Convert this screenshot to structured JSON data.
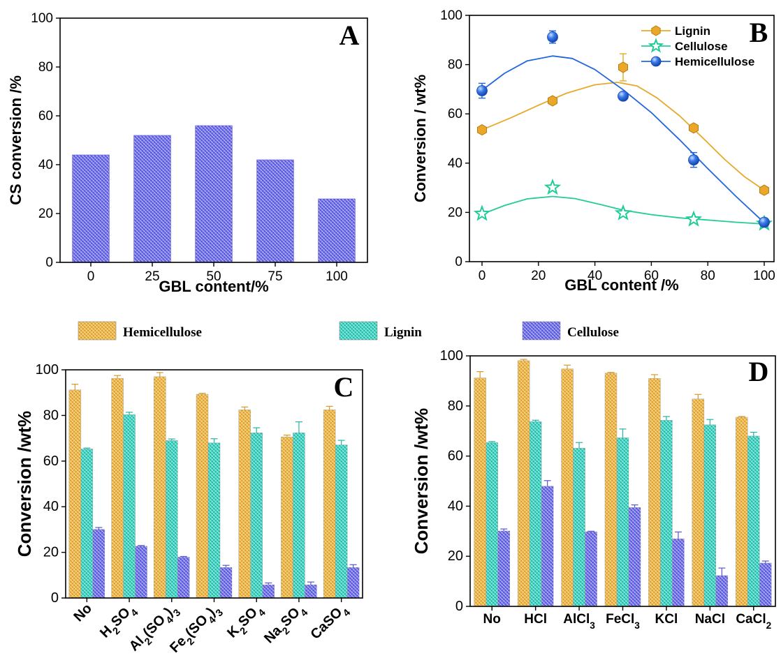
{
  "colors": {
    "hemicellulose_bar": "#F0B845",
    "lignin_bar": "#3CD6C4",
    "cellulose_bar": "#6E6EF0",
    "line_lignin": "#E8A92A",
    "line_cellulose": "#22CC99",
    "line_hemicellulose": "#2266DD"
  },
  "shared_legend": [
    {
      "name": "Hemicellulose",
      "pattern": "hemi"
    },
    {
      "name": "Lignin",
      "pattern": "lig"
    },
    {
      "name": "Cellulose",
      "pattern": "cel"
    }
  ],
  "chart_data": [
    {
      "id": "A",
      "type": "bar",
      "label": "A",
      "xlabel": "GBL content/%",
      "ylabel": "CS conversion /%",
      "ylim": [
        0,
        100
      ],
      "yticks": [
        0,
        20,
        40,
        60,
        80,
        100
      ],
      "categories": [
        "0",
        "25",
        "50",
        "75",
        "100"
      ],
      "values": [
        44,
        52,
        56,
        42,
        26
      ]
    },
    {
      "id": "B",
      "type": "line",
      "label": "B",
      "xlabel": "GBL content /%",
      "ylabel": "Conversion / wt%",
      "xlim": [
        0,
        100
      ],
      "ylim": [
        0,
        100
      ],
      "xticks": [
        0,
        20,
        40,
        60,
        80,
        100
      ],
      "yticks": [
        0,
        20,
        40,
        60,
        80,
        100
      ],
      "legend_position": "top-right",
      "x": [
        0,
        25,
        50,
        75,
        100
      ],
      "series": [
        {
          "name": "Lignin",
          "marker": "hexagon",
          "values": [
            53.5,
            65.3,
            78.9,
            54.3,
            29
          ],
          "errors": [
            0.8,
            0.8,
            5.5,
            1,
            1
          ],
          "fit": [
            [
              0,
              53.5
            ],
            [
              10,
              58.3
            ],
            [
              20,
              63.5
            ],
            [
              30,
              68.4
            ],
            [
              40,
              71.8
            ],
            [
              48,
              72.8
            ],
            [
              55,
              71.3
            ],
            [
              62,
              66.5
            ],
            [
              70,
              59.2
            ],
            [
              78,
              50.5
            ],
            [
              86,
              41.5
            ],
            [
              93,
              34.5
            ],
            [
              100,
              29
            ]
          ]
        },
        {
          "name": "Cellulose",
          "marker": "star",
          "values": [
            19.5,
            30.1,
            19.7,
            17.2,
            15.5
          ],
          "errors": [
            0.5,
            0.8,
            0.5,
            0.5,
            0.5
          ],
          "fit": [
            [
              0,
              19.3
            ],
            [
              8,
              22.8
            ],
            [
              16,
              25.5
            ],
            [
              25,
              26.5
            ],
            [
              33,
              25.6
            ],
            [
              42,
              23.2
            ],
            [
              50,
              20.9
            ],
            [
              60,
              19.1
            ],
            [
              70,
              17.8
            ],
            [
              80,
              16.9
            ],
            [
              90,
              16
            ],
            [
              100,
              15.3
            ]
          ]
        },
        {
          "name": "Hemicellulose",
          "marker": "circle",
          "values": [
            69.4,
            91.2,
            67.2,
            41.3,
            16
          ],
          "errors": [
            3,
            2.5,
            1,
            3,
            1
          ],
          "fit": [
            [
              0,
              69.6
            ],
            [
              8,
              76.5
            ],
            [
              16,
              81.5
            ],
            [
              25,
              83.5
            ],
            [
              32,
              82.5
            ],
            [
              40,
              78
            ],
            [
              50,
              69.8
            ],
            [
              60,
              60.5
            ],
            [
              70,
              49.5
            ],
            [
              80,
              37.8
            ],
            [
              90,
              26.5
            ],
            [
              100,
              15.8
            ]
          ]
        }
      ]
    },
    {
      "id": "C",
      "type": "bar",
      "label": "C",
      "xlabel": "",
      "ylabel": "Conversion /wt%",
      "ylim": [
        0,
        100
      ],
      "yticks": [
        0,
        20,
        40,
        60,
        80,
        100
      ],
      "categories": [
        {
          "parts": [
            [
              "No",
              ""
            ]
          ]
        },
        {
          "parts": [
            [
              "H",
              ""
            ],
            [
              "2",
              "sub"
            ],
            [
              "SO",
              ""
            ],
            [
              "4",
              "sub"
            ]
          ]
        },
        {
          "parts": [
            [
              "Al",
              ""
            ],
            [
              "2",
              "sub"
            ],
            [
              "(SO",
              ""
            ],
            [
              "4",
              "sub"
            ],
            [
              ")",
              ""
            ],
            [
              "3",
              "sub"
            ]
          ]
        },
        {
          "parts": [
            [
              "Fe",
              ""
            ],
            [
              "2",
              "sub"
            ],
            [
              "(SO",
              ""
            ],
            [
              "4",
              "sub"
            ],
            [
              ")",
              ""
            ],
            [
              "3",
              "sub"
            ]
          ]
        },
        {
          "parts": [
            [
              "K",
              ""
            ],
            [
              "2",
              "sub"
            ],
            [
              "SO",
              ""
            ],
            [
              "4",
              "sub"
            ]
          ]
        },
        {
          "parts": [
            [
              "Na",
              ""
            ],
            [
              "2",
              "sub"
            ],
            [
              "SO",
              ""
            ],
            [
              "4",
              "sub"
            ]
          ]
        },
        {
          "parts": [
            [
              "CaSO",
              ""
            ],
            [
              "4",
              "sub"
            ]
          ]
        }
      ],
      "series": [
        {
          "name": "Hemicellulose",
          "values": [
            91.2,
            96.3,
            97,
            89.3,
            82.5,
            70.6,
            82.5
          ],
          "errors": [
            2.5,
            1.2,
            1.8,
            0.4,
            1.2,
            0.8,
            1.5
          ]
        },
        {
          "name": "Lignin",
          "values": [
            65.3,
            80.4,
            69,
            68,
            72.4,
            72.4,
            67.1
          ],
          "errors": [
            0.4,
            1,
            0.7,
            1.8,
            2.2,
            4.8,
            2
          ]
        },
        {
          "name": "Cellulose",
          "values": [
            30.1,
            22.7,
            17.9,
            13.4,
            5.8,
            5.8,
            13.4
          ],
          "errors": [
            0.8,
            0.3,
            0.3,
            0.9,
            0.8,
            1.2,
            1.2
          ]
        }
      ]
    },
    {
      "id": "D",
      "type": "bar",
      "label": "D",
      "xlabel": "",
      "ylabel": "Conversion /wt%",
      "ylim": [
        0,
        100
      ],
      "yticks": [
        0,
        20,
        40,
        60,
        80,
        100
      ],
      "categories": [
        {
          "parts": [
            [
              "No",
              ""
            ]
          ]
        },
        {
          "parts": [
            [
              "HCl",
              ""
            ]
          ]
        },
        {
          "parts": [
            [
              "AlCl",
              ""
            ],
            [
              "3",
              "sub"
            ]
          ]
        },
        {
          "parts": [
            [
              "FeCl",
              ""
            ],
            [
              "3",
              "sub"
            ]
          ]
        },
        {
          "parts": [
            [
              "KCl",
              ""
            ]
          ]
        },
        {
          "parts": [
            [
              "NaCl",
              ""
            ]
          ]
        },
        {
          "parts": [
            [
              "CaCl",
              ""
            ],
            [
              "2",
              "sub"
            ]
          ]
        }
      ],
      "series": [
        {
          "name": "Hemicellulose",
          "values": [
            91.2,
            98.1,
            94.8,
            93.1,
            91,
            82.8,
            75.5
          ],
          "errors": [
            2.5,
            0.5,
            1.5,
            0.3,
            1.5,
            1.8,
            0.3
          ]
        },
        {
          "name": "Lignin",
          "values": [
            65.4,
            73.8,
            63.2,
            67.3,
            74.3,
            72.5,
            68
          ],
          "errors": [
            0.4,
            0.5,
            2.2,
            3.5,
            1.5,
            2.1,
            1.5
          ]
        },
        {
          "name": "Cellulose",
          "values": [
            30.1,
            48,
            29.8,
            39.5,
            27,
            12.3,
            17.3
          ],
          "errors": [
            0.8,
            2.2,
            0.2,
            1,
            2.7,
            3,
            0.8
          ]
        }
      ]
    }
  ]
}
